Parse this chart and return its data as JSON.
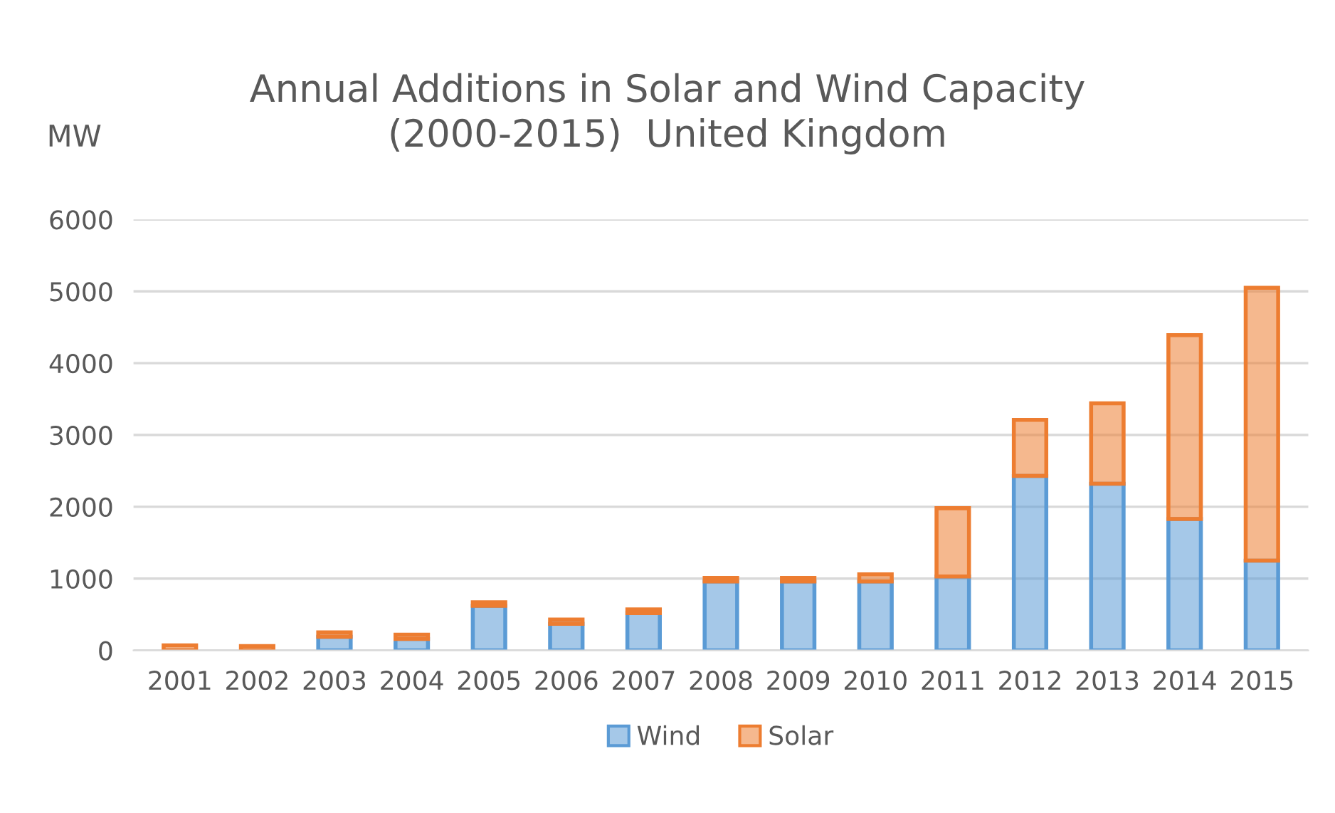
{
  "chart_data": {
    "type": "bar",
    "title": "Annual Additions in Solar and Wind Capacity\n(2000-2015)  United Kingdom",
    "ylabel": "MW",
    "categories": [
      "2001",
      "2002",
      "2003",
      "2004",
      "2005",
      "2006",
      "2007",
      "2008",
      "2009",
      "2010",
      "2011",
      "2012",
      "2013",
      "2014",
      "2015"
    ],
    "stacked": true,
    "series": [
      {
        "name": "Wind",
        "color": "#5b9bd5",
        "values": [
          null,
          null,
          190,
          160,
          620,
          370,
          520,
          960,
          960,
          960,
          1030,
          2430,
          2320,
          1830,
          1250
        ]
      },
      {
        "name": "Solar",
        "color": "#ed7d31",
        "values": [
          70,
          60,
          60,
          60,
          50,
          60,
          50,
          50,
          50,
          100,
          950,
          780,
          1120,
          2560,
          3800
        ]
      }
    ],
    "ylim": [
      0,
      6000
    ],
    "yticks": [
      0,
      1000,
      2000,
      3000,
      4000,
      5000,
      6000
    ],
    "grid": "y",
    "legend": "bottom"
  }
}
